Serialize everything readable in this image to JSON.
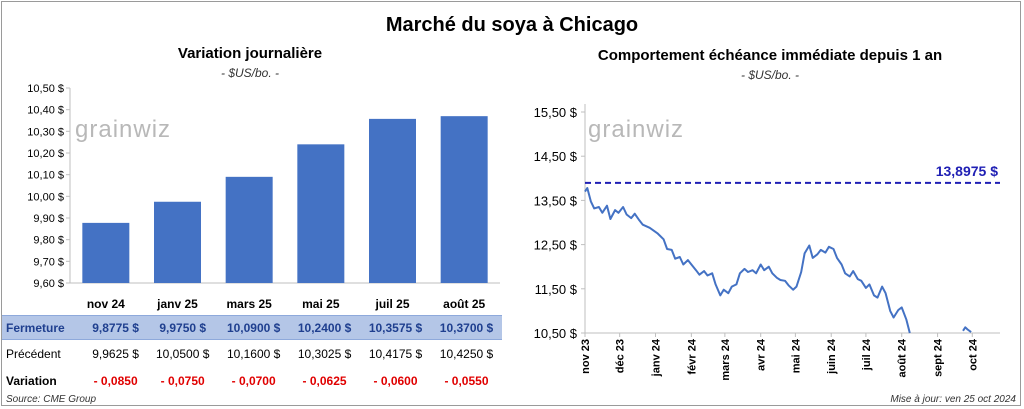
{
  "title": "Marché du soya à Chicago",
  "left": {
    "title": "Variation journalière",
    "unit": "- $US/bo. -",
    "watermark": "grainwiz"
  },
  "right": {
    "title": "Comportement échéance immédiate depuis 1 an",
    "unit": "- $US/bo. -",
    "watermark": "grainwiz",
    "ref_label": "13,8975 $"
  },
  "table": {
    "rows": [
      {
        "label": "Fermeture",
        "values": [
          "9,8775",
          "9,9750",
          "10,0900",
          "10,2400",
          "10,3575",
          "10,3700"
        ],
        "suffix": "$"
      },
      {
        "label": "Précédent",
        "values": [
          "9,9625",
          "10,0500",
          "10,1600",
          "10,3025",
          "10,4175",
          "10,4250"
        ],
        "suffix": "$"
      },
      {
        "label": "Variation",
        "values": [
          "- 0,0850",
          "- 0,0750",
          "- 0,0700",
          "- 0,0625",
          "- 0,0600",
          "- 0,0550"
        ],
        "suffix": ""
      }
    ]
  },
  "footer": {
    "source": "Source: CME Group",
    "updated": "Mise à jour: ven 25 oct 2024"
  },
  "colors": {
    "bar": "#4472c4",
    "line": "#4472c4",
    "ref": "#1f1fb4",
    "negative": "#e00000",
    "header_fill": "#b4c6e7"
  },
  "chart_data": [
    {
      "type": "bar",
      "title": "Variation journalière",
      "subtitle": "- $US/bo. -",
      "categories": [
        "nov 24",
        "janv 25",
        "mars 25",
        "mai 25",
        "juil 25",
        "août 25"
      ],
      "values": [
        9.8775,
        9.975,
        10.09,
        10.24,
        10.3575,
        10.37
      ],
      "ylim": [
        9.6,
        10.5
      ],
      "yticks": [
        9.6,
        9.7,
        9.8,
        9.9,
        10.0,
        10.1,
        10.2,
        10.3,
        10.4,
        10.5
      ],
      "ytick_labels": [
        "9,60 $",
        "9,70 $",
        "9,80 $",
        "9,90 $",
        "10,00 $",
        "10,10 $",
        "10,20 $",
        "10,30 $",
        "10,40 $",
        "10,50 $"
      ],
      "grid": false
    },
    {
      "type": "line",
      "title": "Comportement échéance immédiate depuis 1 an",
      "subtitle": "- $US/bo. -",
      "x_tick_labels": [
        "nov 23",
        "déc 23",
        "janv 24",
        "févr 24",
        "mars 24",
        "avr 24",
        "mai 24",
        "juin 24",
        "juil 24",
        "août 24",
        "sept 24",
        "oct 24"
      ],
      "x_tick_dates": [
        "2023-11-01",
        "2023-12-01",
        "2024-01-01",
        "2024-02-01",
        "2024-03-01",
        "2024-04-01",
        "2024-05-01",
        "2024-06-01",
        "2024-07-01",
        "2024-08-01",
        "2024-09-01",
        "2024-10-01"
      ],
      "x_range": [
        "2023-11-01",
        "2024-10-25"
      ],
      "ylim": [
        10.5,
        15.5
      ],
      "yticks": [
        10.5,
        11.5,
        12.5,
        13.5,
        14.5,
        15.5
      ],
      "ytick_labels": [
        "10,50 $",
        "11,50 $",
        "12,50 $",
        "13,50 $",
        "14,50 $",
        "15,50 $"
      ],
      "reference_line": {
        "value": 13.8975,
        "label": "13,8975 $",
        "style": "dashed"
      },
      "series": [
        {
          "points": [
            [
              "2023-11-01",
              13.7
            ],
            [
              "2023-11-03",
              13.78
            ],
            [
              "2023-11-06",
              13.48
            ],
            [
              "2023-11-09",
              13.32
            ],
            [
              "2023-11-13",
              13.35
            ],
            [
              "2023-11-16",
              13.22
            ],
            [
              "2023-11-20",
              13.38
            ],
            [
              "2023-11-23",
              13.08
            ],
            [
              "2023-11-27",
              13.28
            ],
            [
              "2023-11-30",
              13.22
            ],
            [
              "2023-12-04",
              13.35
            ],
            [
              "2023-12-07",
              13.18
            ],
            [
              "2023-12-11",
              13.1
            ],
            [
              "2023-12-14",
              13.2
            ],
            [
              "2023-12-18",
              13.05
            ],
            [
              "2023-12-21",
              12.95
            ],
            [
              "2023-12-27",
              12.88
            ],
            [
              "2024-01-03",
              12.75
            ],
            [
              "2024-01-08",
              12.62
            ],
            [
              "2024-01-11",
              12.4
            ],
            [
              "2024-01-15",
              12.38
            ],
            [
              "2024-01-18",
              12.18
            ],
            [
              "2024-01-22",
              12.22
            ],
            [
              "2024-01-25",
              12.05
            ],
            [
              "2024-01-29",
              12.15
            ],
            [
              "2024-02-01",
              12.05
            ],
            [
              "2024-02-05",
              11.92
            ],
            [
              "2024-02-08",
              11.82
            ],
            [
              "2024-02-12",
              11.9
            ],
            [
              "2024-02-15",
              11.8
            ],
            [
              "2024-02-19",
              11.85
            ],
            [
              "2024-02-22",
              11.6
            ],
            [
              "2024-02-26",
              11.35
            ],
            [
              "2024-02-29",
              11.48
            ],
            [
              "2024-03-04",
              11.4
            ],
            [
              "2024-03-07",
              11.55
            ],
            [
              "2024-03-11",
              11.6
            ],
            [
              "2024-03-14",
              11.85
            ],
            [
              "2024-03-18",
              11.95
            ],
            [
              "2024-03-21",
              11.88
            ],
            [
              "2024-03-25",
              11.92
            ],
            [
              "2024-03-28",
              11.85
            ],
            [
              "2024-04-01",
              12.05
            ],
            [
              "2024-04-04",
              11.92
            ],
            [
              "2024-04-08",
              12.0
            ],
            [
              "2024-04-11",
              11.85
            ],
            [
              "2024-04-15",
              11.75
            ],
            [
              "2024-04-18",
              11.7
            ],
            [
              "2024-04-22",
              11.68
            ],
            [
              "2024-04-25",
              11.58
            ],
            [
              "2024-04-29",
              11.48
            ],
            [
              "2024-05-02",
              11.55
            ],
            [
              "2024-05-06",
              11.88
            ],
            [
              "2024-05-09",
              12.3
            ],
            [
              "2024-05-13",
              12.48
            ],
            [
              "2024-05-16",
              12.2
            ],
            [
              "2024-05-20",
              12.28
            ],
            [
              "2024-05-23",
              12.38
            ],
            [
              "2024-05-27",
              12.32
            ],
            [
              "2024-05-30",
              12.45
            ],
            [
              "2024-06-03",
              12.4
            ],
            [
              "2024-06-06",
              12.2
            ],
            [
              "2024-06-10",
              12.05
            ],
            [
              "2024-06-13",
              11.85
            ],
            [
              "2024-06-17",
              11.78
            ],
            [
              "2024-06-20",
              11.9
            ],
            [
              "2024-06-24",
              11.72
            ],
            [
              "2024-06-27",
              11.68
            ],
            [
              "2024-07-01",
              11.52
            ],
            [
              "2024-07-04",
              11.6
            ],
            [
              "2024-07-08",
              11.35
            ],
            [
              "2024-07-11",
              11.3
            ],
            [
              "2024-07-15",
              11.55
            ],
            [
              "2024-07-18",
              11.4
            ],
            [
              "2024-07-22",
              11.0
            ],
            [
              "2024-07-25",
              10.85
            ],
            [
              "2024-07-29",
              11.02
            ],
            [
              "2024-08-01",
              11.08
            ],
            [
              "2024-08-05",
              10.8
            ],
            [
              "2024-08-08",
              10.5
            ]
          ]
        },
        {
          "points": [
            [
              "2024-09-23",
              10.55
            ],
            [
              "2024-09-25",
              10.63
            ],
            [
              "2024-09-27",
              10.58
            ],
            [
              "2024-09-30",
              10.52
            ]
          ]
        }
      ],
      "grid": false
    }
  ]
}
